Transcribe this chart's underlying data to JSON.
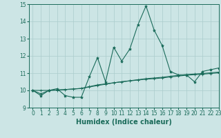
{
  "x": [
    0,
    1,
    2,
    3,
    4,
    5,
    6,
    7,
    8,
    9,
    10,
    11,
    12,
    13,
    14,
    15,
    16,
    17,
    18,
    19,
    20,
    21,
    22,
    23
  ],
  "line1": [
    10.0,
    9.7,
    10.0,
    10.1,
    9.7,
    9.6,
    9.6,
    10.8,
    11.9,
    10.5,
    12.5,
    11.7,
    12.4,
    13.8,
    14.9,
    13.5,
    12.6,
    11.1,
    10.9,
    10.9,
    10.5,
    11.1,
    11.2,
    11.3
  ],
  "line2": [
    10.0,
    9.8,
    10.0,
    10.02,
    10.05,
    10.08,
    10.11,
    10.2,
    10.28,
    10.36,
    10.44,
    10.5,
    10.56,
    10.62,
    10.68,
    10.72,
    10.76,
    10.82,
    10.87,
    10.92,
    10.95,
    10.98,
    11.02,
    11.06
  ],
  "line3": [
    10.0,
    10.0,
    10.0,
    10.02,
    10.05,
    10.08,
    10.12,
    10.22,
    10.32,
    10.38,
    10.44,
    10.5,
    10.55,
    10.6,
    10.65,
    10.68,
    10.72,
    10.78,
    10.83,
    10.88,
    10.91,
    10.94,
    10.98,
    11.02
  ],
  "bg_color": "#cce5e5",
  "line_color": "#1a6b5a",
  "grid_color": "#aacccc",
  "xlabel": "Humidex (Indice chaleur)",
  "ylim": [
    9,
    15
  ],
  "xlim": [
    -0.5,
    23
  ],
  "yticks": [
    9,
    10,
    11,
    12,
    13,
    14,
    15
  ],
  "xticks": [
    0,
    1,
    2,
    3,
    4,
    5,
    6,
    7,
    8,
    9,
    10,
    11,
    12,
    13,
    14,
    15,
    16,
    17,
    18,
    19,
    20,
    21,
    22,
    23
  ],
  "tick_fontsize": 5.5,
  "xlabel_fontsize": 7.0
}
